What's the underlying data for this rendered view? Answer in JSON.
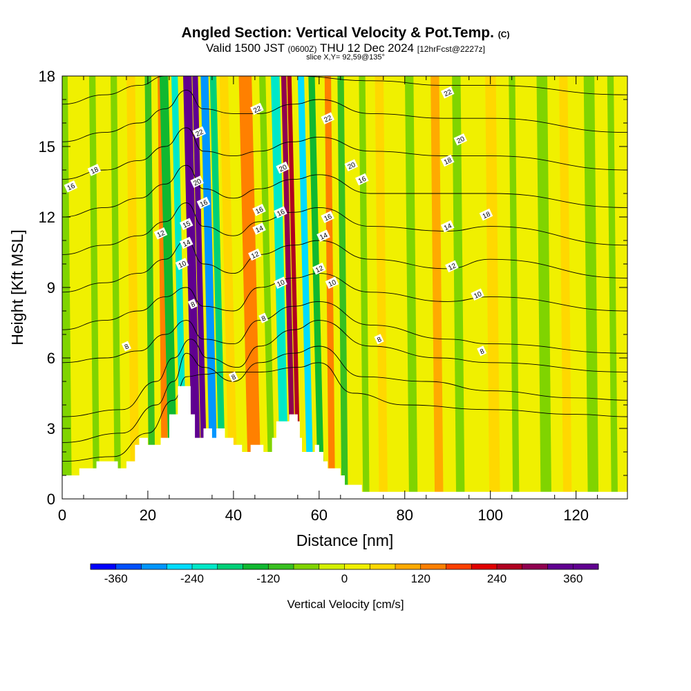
{
  "header": {
    "title": "Angled Section: Vertical Velocity & Pot.Temp.",
    "title_mark": "(C)",
    "valid_prefix": "Valid 1500 JST",
    "valid_utc": "(0600Z)",
    "valid_date": "THU 12 Dec 2024",
    "forecast": "[12hrFcst@2227z]",
    "slice": "slice X,Y= 92,59@135°"
  },
  "chart_data": {
    "type": "heatmap",
    "xlabel": "Distance [nm]",
    "ylabel": "Height [Kft MSL]",
    "xlim": [
      0,
      132
    ],
    "ylim": [
      0,
      18
    ],
    "xticks": [
      0,
      20,
      40,
      60,
      80,
      100,
      120
    ],
    "yticks": [
      0,
      3,
      6,
      9,
      12,
      15,
      18
    ],
    "colorbar": {
      "label": "Vertical Velocity [cm/s]",
      "ticks": [
        -360,
        -240,
        -120,
        0,
        120,
        240,
        360
      ],
      "colors": [
        "#0000ff",
        "#0050ff",
        "#0096ff",
        "#00dcff",
        "#00e8c8",
        "#00d078",
        "#10b830",
        "#38c020",
        "#80d400",
        "#d4f000",
        "#f0f000",
        "#ffd800",
        "#ffaa00",
        "#ff8000",
        "#ff4000",
        "#e00000",
        "#b00020",
        "#900050",
        "#600090"
      ]
    },
    "velocity_bands": [
      {
        "x": 1,
        "w": 2.5,
        "v": -60
      },
      {
        "x": 5,
        "w": 2,
        "v": 10
      },
      {
        "x": 8,
        "w": 1.5,
        "v": -80
      },
      {
        "x": 13,
        "w": 1.5,
        "v": -60
      },
      {
        "x": 17,
        "w": 2,
        "v": 40
      },
      {
        "x": 21,
        "w": 1.5,
        "v": -90
      },
      {
        "x": 24,
        "w": 1.5,
        "v": 150
      },
      {
        "x": 26,
        "w": 2,
        "v": -130
      },
      {
        "x": 28.5,
        "w": 1.5,
        "v": -220
      },
      {
        "x": 31.5,
        "w": 2,
        "v": 330
      },
      {
        "x": 33.3,
        "w": 1.3,
        "v": 420
      },
      {
        "x": 35.5,
        "w": 1.8,
        "v": -300
      },
      {
        "x": 37.5,
        "w": 1.5,
        "v": -170
      },
      {
        "x": 40,
        "w": 2,
        "v": 50
      },
      {
        "x": 45,
        "w": 3,
        "v": 120
      },
      {
        "x": 49,
        "w": 1.5,
        "v": -80
      },
      {
        "x": 52,
        "w": 2,
        "v": -220
      },
      {
        "x": 54,
        "w": 1.2,
        "v": 300
      },
      {
        "x": 55.3,
        "w": 1,
        "v": 250
      },
      {
        "x": 58,
        "w": 1.5,
        "v": -260
      },
      {
        "x": 60.5,
        "w": 1.5,
        "v": -140
      },
      {
        "x": 63,
        "w": 1.5,
        "v": 140
      },
      {
        "x": 66,
        "w": 1.5,
        "v": -100
      },
      {
        "x": 71,
        "w": 1.5,
        "v": -60
      },
      {
        "x": 75,
        "w": 2,
        "v": 60
      },
      {
        "x": 82,
        "w": 2,
        "v": -70
      },
      {
        "x": 88,
        "w": 2,
        "v": 90
      },
      {
        "x": 93,
        "w": 2,
        "v": -60
      },
      {
        "x": 101,
        "w": 2.5,
        "v": 60
      },
      {
        "x": 106,
        "w": 1.5,
        "v": -60
      },
      {
        "x": 113,
        "w": 2.5,
        "v": -80
      },
      {
        "x": 118,
        "w": 2,
        "v": 50
      },
      {
        "x": 124,
        "w": 2.5,
        "v": -70
      },
      {
        "x": 129,
        "w": 1.5,
        "v": -60
      }
    ],
    "terrain": [
      [
        0,
        1
      ],
      [
        4,
        1
      ],
      [
        4,
        1.3
      ],
      [
        8,
        1.3
      ],
      [
        8,
        1.6
      ],
      [
        13,
        1.6
      ],
      [
        13,
        1.3
      ],
      [
        15,
        1.3
      ],
      [
        15,
        1.6
      ],
      [
        17,
        1.6
      ],
      [
        17,
        2.3
      ],
      [
        18,
        2.3
      ],
      [
        18,
        2.6
      ],
      [
        20,
        2.6
      ],
      [
        20,
        2.3
      ],
      [
        23,
        2.3
      ],
      [
        23,
        2.6
      ],
      [
        25,
        2.6
      ],
      [
        25,
        3.6
      ],
      [
        27,
        3.6
      ],
      [
        27,
        4.8
      ],
      [
        30,
        4.8
      ],
      [
        30,
        3.6
      ],
      [
        31,
        3.6
      ],
      [
        31,
        2.6
      ],
      [
        33,
        2.6
      ],
      [
        33,
        3
      ],
      [
        35,
        3
      ],
      [
        35,
        2.6
      ],
      [
        36,
        2.6
      ],
      [
        36,
        3
      ],
      [
        38,
        3
      ],
      [
        38,
        2.6
      ],
      [
        40,
        2.6
      ],
      [
        40,
        2.3
      ],
      [
        42,
        2.3
      ],
      [
        42,
        2
      ],
      [
        44,
        2
      ],
      [
        44,
        2.3
      ],
      [
        47,
        2.3
      ],
      [
        47,
        2
      ],
      [
        49,
        2
      ],
      [
        49,
        2.6
      ],
      [
        50,
        2.6
      ],
      [
        50,
        3.3
      ],
      [
        53,
        3.3
      ],
      [
        53,
        3.6
      ],
      [
        55,
        3.6
      ],
      [
        55,
        3.3
      ],
      [
        55.5,
        3.3
      ],
      [
        55.5,
        2.6
      ],
      [
        56,
        2.6
      ],
      [
        56,
        2
      ],
      [
        59,
        2
      ],
      [
        59,
        2.3
      ],
      [
        60,
        2.3
      ],
      [
        60,
        2
      ],
      [
        61,
        2
      ],
      [
        61,
        1.6
      ],
      [
        62,
        1.6
      ],
      [
        62,
        1.3
      ],
      [
        65,
        1.3
      ],
      [
        65,
        1
      ],
      [
        66,
        1
      ],
      [
        66,
        0.6
      ],
      [
        70,
        0.6
      ],
      [
        70,
        0.3
      ],
      [
        132,
        0.3
      ],
      [
        132,
        0
      ],
      [
        0,
        0
      ]
    ],
    "theta_contours": [
      {
        "pts": [
          [
            0,
            1.6
          ],
          [
            12,
            1.8
          ],
          [
            20,
            2.8
          ],
          [
            26,
            4.2
          ],
          [
            29,
            5.2
          ],
          [
            33,
            5.3
          ],
          [
            38,
            5.4
          ],
          [
            46,
            5.4
          ],
          [
            55,
            5.6
          ],
          [
            60,
            5.8
          ],
          [
            68,
            4.5
          ],
          [
            80,
            4.0
          ],
          [
            100,
            3.8
          ],
          [
            120,
            3.6
          ],
          [
            132,
            3.5
          ]
        ]
      },
      {
        "pts": [
          [
            0,
            2.4
          ],
          [
            14,
            2.8
          ],
          [
            22,
            4.0
          ],
          [
            26,
            5.0
          ],
          [
            29,
            6.2
          ],
          [
            33,
            5.6
          ],
          [
            40,
            5.0
          ],
          [
            46,
            5.8
          ],
          [
            54,
            6.2
          ],
          [
            60,
            6.5
          ],
          [
            70,
            5.2
          ],
          [
            85,
            5.0
          ],
          [
            100,
            4.6
          ],
          [
            120,
            4.3
          ],
          [
            132,
            4.2
          ]
        ]
      },
      {
        "pts": [
          [
            0,
            3.5
          ],
          [
            14,
            3.8
          ],
          [
            22,
            5.0
          ],
          [
            26,
            6.0
          ],
          [
            30,
            6.8
          ],
          [
            34,
            6.0
          ],
          [
            41,
            5.6
          ],
          [
            46,
            6.5
          ],
          [
            54,
            7.2
          ],
          [
            60,
            7.6
          ],
          [
            72,
            6.5
          ],
          [
            88,
            6.0
          ],
          [
            100,
            5.8
          ],
          [
            132,
            5.4
          ]
        ]
      },
      {
        "pts": [
          [
            0,
            5.8
          ],
          [
            10,
            6.0
          ],
          [
            18,
            6.3
          ],
          [
            24,
            7.0
          ],
          [
            29,
            7.6
          ],
          [
            33,
            6.8
          ],
          [
            40,
            6.6
          ],
          [
            46,
            7.6
          ],
          [
            54,
            8.2
          ],
          [
            60,
            8.4
          ],
          [
            72,
            7.4
          ],
          [
            90,
            6.8
          ],
          [
            100,
            6.6
          ],
          [
            132,
            6.2
          ]
        ]
      },
      {
        "pts": [
          [
            0,
            7.2
          ],
          [
            10,
            7.6
          ],
          [
            18,
            8.0
          ],
          [
            24,
            8.6
          ],
          [
            29,
            9.0
          ],
          [
            33,
            8.2
          ],
          [
            40,
            8.0
          ],
          [
            46,
            9.0
          ],
          [
            54,
            9.4
          ],
          [
            60,
            9.6
          ],
          [
            72,
            8.8
          ],
          [
            90,
            8.4
          ],
          [
            100,
            8.6
          ],
          [
            132,
            8.0
          ]
        ]
      },
      {
        "pts": [
          [
            0,
            8.8
          ],
          [
            10,
            9.2
          ],
          [
            18,
            9.6
          ],
          [
            24,
            10.2
          ],
          [
            29,
            11.0
          ],
          [
            33,
            10.0
          ],
          [
            40,
            9.6
          ],
          [
            46,
            10.4
          ],
          [
            54,
            10.8
          ],
          [
            60,
            11.0
          ],
          [
            72,
            10.2
          ],
          [
            90,
            9.8
          ],
          [
            100,
            10.2
          ],
          [
            132,
            9.4
          ]
        ]
      },
      {
        "pts": [
          [
            0,
            10.4
          ],
          [
            10,
            10.8
          ],
          [
            18,
            11.2
          ],
          [
            24,
            11.8
          ],
          [
            29,
            12.6
          ],
          [
            33,
            11.6
          ],
          [
            40,
            11.2
          ],
          [
            46,
            11.8
          ],
          [
            54,
            12.2
          ],
          [
            60,
            12.4
          ],
          [
            72,
            11.6
          ],
          [
            90,
            11.4
          ],
          [
            100,
            11.6
          ],
          [
            132,
            10.8
          ]
        ]
      },
      {
        "pts": [
          [
            0,
            12.0
          ],
          [
            10,
            12.4
          ],
          [
            18,
            12.8
          ],
          [
            24,
            13.4
          ],
          [
            29,
            14.2
          ],
          [
            33,
            13.2
          ],
          [
            40,
            12.8
          ],
          [
            46,
            13.2
          ],
          [
            54,
            13.6
          ],
          [
            60,
            13.8
          ],
          [
            72,
            13.0
          ],
          [
            90,
            13.0
          ],
          [
            100,
            13.0
          ],
          [
            132,
            12.4
          ]
        ]
      },
      {
        "pts": [
          [
            0,
            13.6
          ],
          [
            10,
            14.0
          ],
          [
            18,
            14.4
          ],
          [
            24,
            15.0
          ],
          [
            29,
            15.8
          ],
          [
            33,
            14.8
          ],
          [
            40,
            14.6
          ],
          [
            46,
            14.8
          ],
          [
            54,
            15.2
          ],
          [
            60,
            15.4
          ],
          [
            72,
            14.8
          ],
          [
            90,
            14.6
          ],
          [
            100,
            14.6
          ],
          [
            132,
            14.0
          ]
        ]
      },
      {
        "pts": [
          [
            0,
            15.2
          ],
          [
            10,
            15.6
          ],
          [
            18,
            16.0
          ],
          [
            24,
            16.6
          ],
          [
            29,
            17.4
          ],
          [
            33,
            16.6
          ],
          [
            40,
            16.4
          ],
          [
            46,
            16.4
          ],
          [
            54,
            16.8
          ],
          [
            60,
            17.0
          ],
          [
            72,
            16.4
          ],
          [
            90,
            16.2
          ],
          [
            100,
            16.2
          ],
          [
            132,
            15.6
          ]
        ]
      },
      {
        "pts": [
          [
            0,
            16.8
          ],
          [
            10,
            17.2
          ],
          [
            18,
            17.6
          ],
          [
            24,
            18.0
          ],
          [
            40,
            18.0
          ],
          [
            54,
            18.0
          ],
          [
            72,
            17.8
          ],
          [
            90,
            17.6
          ],
          [
            100,
            17.6
          ],
          [
            132,
            17.2
          ]
        ]
      }
    ],
    "contour_labels": [
      {
        "x": 15,
        "y": 6.5,
        "text": "8"
      },
      {
        "x": 30.5,
        "y": 8.3,
        "text": "8"
      },
      {
        "x": 40,
        "y": 5.2,
        "text": "8"
      },
      {
        "x": 47,
        "y": 7.7,
        "text": "8"
      },
      {
        "x": 74,
        "y": 6.8,
        "text": "8"
      },
      {
        "x": 98,
        "y": 6.3,
        "text": "8"
      },
      {
        "x": 28,
        "y": 10.0,
        "text": "10"
      },
      {
        "x": 51,
        "y": 9.2,
        "text": "10"
      },
      {
        "x": 63,
        "y": 9.2,
        "text": "10"
      },
      {
        "x": 97,
        "y": 8.7,
        "text": "10"
      },
      {
        "x": 23,
        "y": 11.3,
        "text": "12"
      },
      {
        "x": 45,
        "y": 10.4,
        "text": "12"
      },
      {
        "x": 60,
        "y": 9.8,
        "text": "12"
      },
      {
        "x": 91,
        "y": 9.9,
        "text": "12"
      },
      {
        "x": 29,
        "y": 10.9,
        "text": "14"
      },
      {
        "x": 46,
        "y": 11.5,
        "text": "14"
      },
      {
        "x": 61,
        "y": 11.2,
        "text": "14"
      },
      {
        "x": 90,
        "y": 11.6,
        "text": "14"
      },
      {
        "x": 29,
        "y": 11.7,
        "text": "15"
      },
      {
        "x": 2,
        "y": 13.3,
        "text": "16"
      },
      {
        "x": 33,
        "y": 12.6,
        "text": "16"
      },
      {
        "x": 46,
        "y": 12.3,
        "text": "16"
      },
      {
        "x": 51,
        "y": 12.2,
        "text": "16"
      },
      {
        "x": 62,
        "y": 12.0,
        "text": "16"
      },
      {
        "x": 70,
        "y": 13.6,
        "text": "16"
      },
      {
        "x": 7.5,
        "y": 14.0,
        "text": "18"
      },
      {
        "x": 90,
        "y": 14.4,
        "text": "18"
      },
      {
        "x": 99,
        "y": 12.1,
        "text": "18"
      },
      {
        "x": 31.5,
        "y": 13.5,
        "text": "20"
      },
      {
        "x": 51.5,
        "y": 14.1,
        "text": "20"
      },
      {
        "x": 67.5,
        "y": 14.2,
        "text": "20"
      },
      {
        "x": 93,
        "y": 15.3,
        "text": "20"
      },
      {
        "x": 32,
        "y": 15.6,
        "text": "22"
      },
      {
        "x": 45.5,
        "y": 16.6,
        "text": "22"
      },
      {
        "x": 62,
        "y": 16.2,
        "text": "22"
      },
      {
        "x": 90,
        "y": 17.3,
        "text": "22"
      }
    ]
  }
}
